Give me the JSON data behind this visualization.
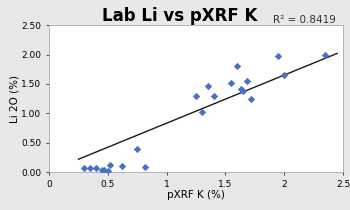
{
  "title": "Lab Li vs pXRF K",
  "xlabel": "pXRF K (%)",
  "ylabel": "Li 2O (%)",
  "r2_text": "R² = 0.8419",
  "scatter_color": "#4472C4",
  "line_color": "#1a1a1a",
  "xlim": [
    0.25,
    2.5
  ],
  "ylim": [
    0.0,
    2.5
  ],
  "xticks": [
    0.0,
    0.5,
    1.0,
    1.5,
    2.0,
    2.5
  ],
  "xticklabels": [
    "0",
    "0.5",
    "1",
    "1.5",
    "2",
    "2.5"
  ],
  "yticks": [
    0.0,
    0.5,
    1.0,
    1.5,
    2.0,
    2.5
  ],
  "yticklabels": [
    "0.00",
    "0.50",
    "1.00",
    "1.50",
    "2.00",
    "2.50"
  ],
  "x_data": [
    0.3,
    0.35,
    0.4,
    0.45,
    0.47,
    0.5,
    0.52,
    0.62,
    0.75,
    0.82,
    1.25,
    1.3,
    1.35,
    1.4,
    1.55,
    1.6,
    1.63,
    1.65,
    1.68,
    1.72,
    1.95,
    2.0,
    2.35
  ],
  "y_data": [
    0.07,
    0.07,
    0.07,
    0.03,
    0.04,
    0.02,
    0.13,
    0.1,
    0.4,
    0.09,
    1.3,
    1.02,
    1.46,
    1.3,
    1.52,
    1.8,
    1.42,
    1.38,
    1.55,
    1.25,
    1.97,
    1.66,
    2.0
  ],
  "trend_x": [
    0.25,
    2.45
  ],
  "trend_y": [
    0.22,
    2.02
  ],
  "background_color": "#e8e8e8",
  "plot_background": "#ffffff"
}
